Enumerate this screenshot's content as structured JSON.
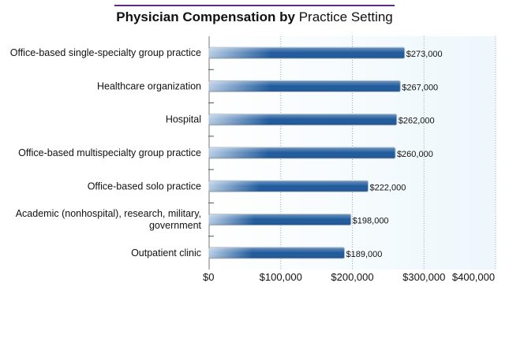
{
  "chart_data": {
    "type": "bar",
    "orientation": "horizontal",
    "title_bold": "Physician Compensation by",
    "title_rest": "Practice Setting",
    "categories": [
      [
        "Office-based single-specialty group practice"
      ],
      [
        "Healthcare organization"
      ],
      [
        "Hospital"
      ],
      [
        "Office-based multispecialty group practice"
      ],
      [
        "Office-based solo practice"
      ],
      [
        "Academic (nonhospital), research, military,",
        "government"
      ],
      [
        "Outpatient clinic"
      ]
    ],
    "values": [
      273000,
      267000,
      262000,
      260000,
      222000,
      198000,
      189000
    ],
    "value_labels": [
      "$273,000",
      "$267,000",
      "$262,000",
      "$260,000",
      "$222,000",
      "$198,000",
      "$189,000"
    ],
    "xlim": [
      0,
      400000
    ],
    "x_ticks": [
      0,
      100000,
      200000,
      300000,
      400000
    ],
    "x_tick_labels": [
      "$0",
      "$100,000",
      "$200,000",
      "$300,000",
      "$400,000"
    ],
    "grid": true,
    "colors": {
      "bar_dark": "#1f5a9c",
      "bar_light": "#b7cde6",
      "plot_bg": "#edf7fc",
      "grid": "#9aa8b4",
      "title_rule": "#5b2a86"
    }
  }
}
